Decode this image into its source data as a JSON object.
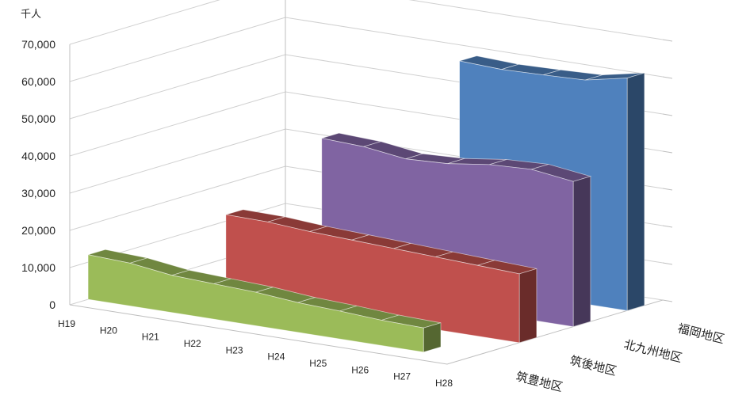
{
  "chart_data": {
    "type": "area",
    "variant": "3d-ribbon",
    "title": "",
    "unit_label": "千人",
    "categories": [
      "H19",
      "H20",
      "H21",
      "H22",
      "H23",
      "H24",
      "H25",
      "H26",
      "H27",
      "H28"
    ],
    "yticks": [
      "0",
      "10,000",
      "20,000",
      "30,000",
      "40,000",
      "50,000",
      "60,000",
      "70,000"
    ],
    "ylim": [
      0,
      70000
    ],
    "grid": true,
    "series": [
      {
        "name": "筑豊地区",
        "color": "#9BBB59",
        "values": [
          12000,
          11500,
          10000,
          9500,
          9000,
          8000,
          7500,
          6800,
          6500,
          null
        ]
      },
      {
        "name": "筑後地区",
        "color": "#C0504D",
        "values": [
          null,
          null,
          22000,
          21800,
          21000,
          20500,
          20000,
          19500,
          19000,
          18500
        ]
      },
      {
        "name": "北九州地区",
        "color": "#8064A2",
        "values": [
          null,
          null,
          null,
          40000,
          39500,
          38000,
          38500,
          40000,
          40500,
          39000
        ]
      },
      {
        "name": "福岡地区",
        "color": "#4F81BD",
        "values": [
          null,
          null,
          null,
          null,
          null,
          60000,
          59500,
          59800,
          60200,
          62500
        ]
      }
    ]
  }
}
